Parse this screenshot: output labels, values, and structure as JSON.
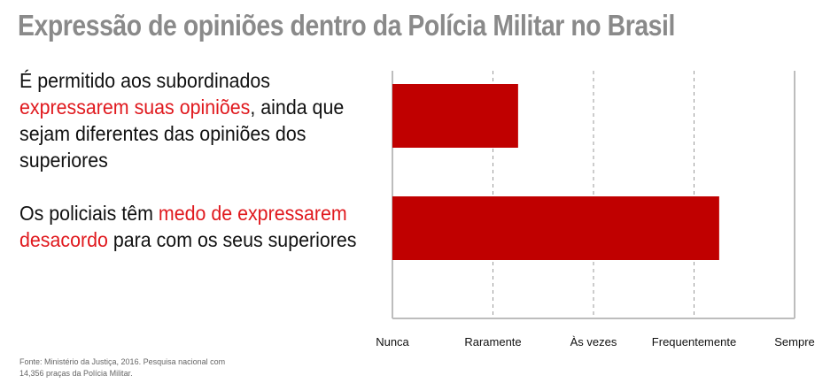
{
  "title": "Expressão de opiniões dentro da Polícia Militar no Brasil",
  "statements": [
    {
      "before": "É permitido aos subordinados ",
      "highlight": "expressarem suas opiniões",
      "after": ", ainda que sejam diferentes das opiniões dos superiores"
    },
    {
      "before": "Os policiais têm ",
      "highlight": "medo de expressarem desacordo",
      "after": " para com os seus superiores"
    }
  ],
  "source": "Fonte: Ministério da Justiça, 2016. Pesquisa nacional com 14,356 praças da Polícia Militar.",
  "colors": {
    "bar": "#c00000",
    "highlight": "#e0191e",
    "title": "#8a8a8a"
  },
  "chart_data": {
    "type": "bar",
    "orientation": "horizontal",
    "categories": [
      "É permitido aos subordinados expressarem suas opiniões, ainda que sejam diferentes das opiniões dos superiores",
      "Os policiais têm medo de expressarem desacordo para com os seus superiores"
    ],
    "values": [
      1.25,
      3.25
    ],
    "xlim": [
      0,
      4
    ],
    "xticks": [
      0,
      1,
      2,
      3,
      4
    ],
    "xtick_labels": [
      "Nunca",
      "Raramente",
      "Às vezes",
      "Frequentemente",
      "Sempre"
    ],
    "grid": "vertical-dashed"
  }
}
